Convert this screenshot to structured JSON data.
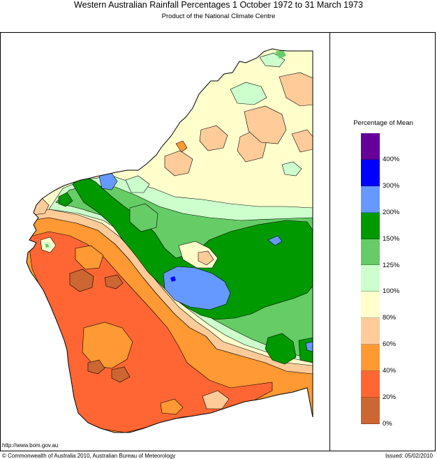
{
  "header": {
    "title": "Western Australian Rainfall Percentages 1 October 1972 to 31 March 1973",
    "subtitle": "Product of the National Climate Centre"
  },
  "legend": {
    "title": "Percentage of Mean",
    "labels": [
      "400%",
      "300%",
      "200%",
      "150%",
      "125%",
      "100%",
      "80%",
      "60%",
      "40%",
      "20%",
      "0%"
    ],
    "colors": [
      "#660099",
      "#0000ff",
      "#6699ff",
      "#009900",
      "#66cc66",
      "#ccffcc",
      "#ffffcc",
      "#ffcc99",
      "#ff9933",
      "#ff6633",
      "#cc6633"
    ]
  },
  "footer": {
    "url": "http://www.bom.gov.au",
    "copyright": "© Commonwealth of Australia 2010, Australian Bureau of Meteorology",
    "issued": "Issued: 05/02/2010"
  }
}
